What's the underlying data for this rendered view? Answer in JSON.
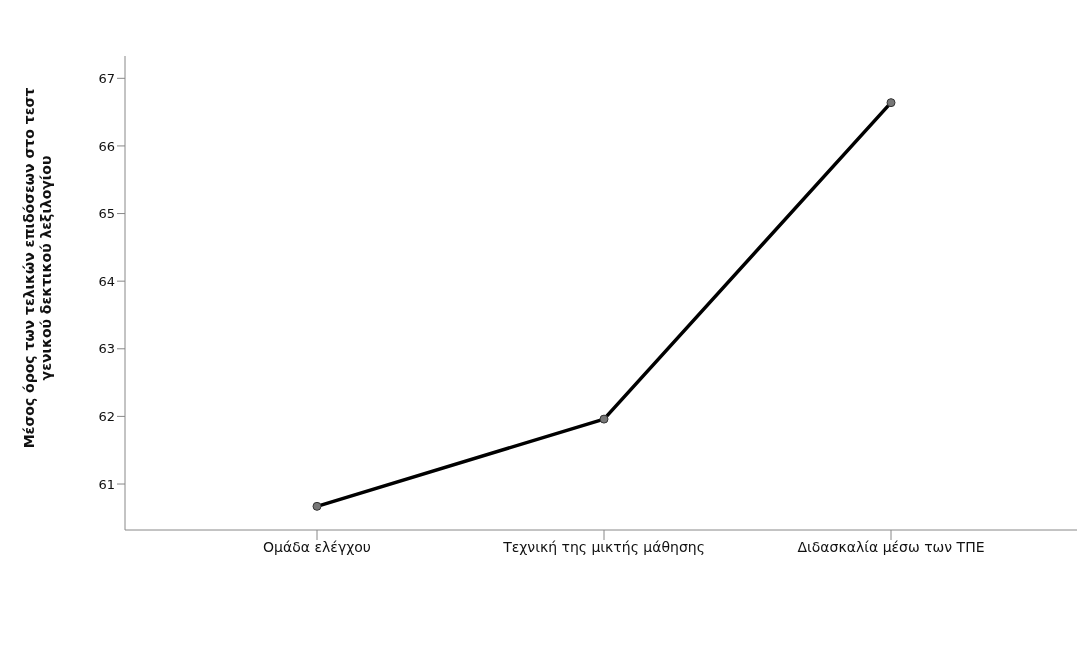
{
  "chart_data": {
    "type": "line",
    "ylabel": "Μέσος όρος των τελικών επιδόσεων στο τεστ γενικού δεκτικού λεξιλογίου",
    "categories": [
      "Ομάδα ελέγχου",
      "Τεχνική της μικτής μάθησης",
      "Διδασκαλία μέσω των ΤΠΕ"
    ],
    "series": [
      {
        "color": "#000000",
        "values": [
          60.67,
          61.96,
          66.64
        ]
      }
    ],
    "ylim": [
      60.32,
      67.33
    ],
    "yticks": [
      61,
      62,
      63,
      64,
      65,
      66,
      67
    ],
    "grid": false,
    "legend": false,
    "marker": "circle",
    "line_style": "solid"
  }
}
